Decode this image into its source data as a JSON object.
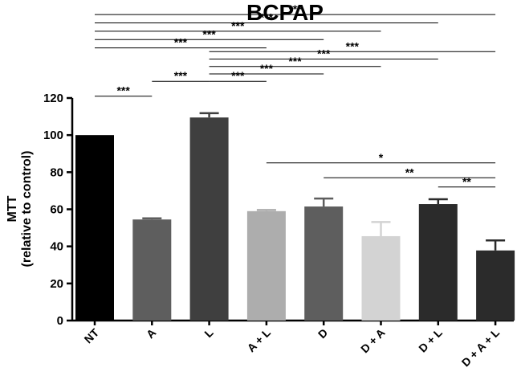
{
  "chart_data": {
    "type": "bar",
    "title": "BCPAP",
    "ylabel_line1": "MTT",
    "ylabel_line2": "(relative to control)",
    "xlabel": "",
    "ylim": [
      0,
      120
    ],
    "yticks": [
      0,
      20,
      40,
      60,
      80,
      100,
      120
    ],
    "grid": false,
    "categories": [
      "NT",
      "A",
      "L",
      "A + L",
      "D",
      "D + A",
      "D + L",
      "D + A + L"
    ],
    "values": [
      100,
      54.5,
      109.5,
      59,
      61.5,
      45.5,
      62.8,
      37.8
    ],
    "errors": [
      0,
      0.6,
      2.3,
      0.6,
      4.3,
      7.6,
      2.6,
      5.4
    ],
    "colors": [
      "#000000",
      "#5e5e5e",
      "#3f3f3f",
      "#adadad",
      "#5e5e5e",
      "#d3d3d3",
      "#2b2b2b",
      "#2b2b2b"
    ],
    "significance": [
      {
        "from": 0,
        "to": 1,
        "label": "***",
        "y": 121
      },
      {
        "from": 1,
        "to": 2,
        "label": "***",
        "y": 129
      },
      {
        "from": 2,
        "to": 3,
        "label": "***",
        "y": 129
      },
      {
        "from": 2,
        "to": 4,
        "label": "***",
        "y": 133
      },
      {
        "from": 2,
        "to": 5,
        "label": "***",
        "y": 137
      },
      {
        "from": 2,
        "to": 6,
        "label": "***",
        "y": 141
      },
      {
        "from": 2,
        "to": 7,
        "label": "***",
        "y": 145
      },
      {
        "from": 0,
        "to": 3,
        "label": "***",
        "y": 147
      },
      {
        "from": 0,
        "to": 4,
        "label": "***",
        "y": 151.5
      },
      {
        "from": 0,
        "to": 5,
        "label": "***",
        "y": 156
      },
      {
        "from": 0,
        "to": 6,
        "label": "***",
        "y": 160.5
      },
      {
        "from": 0,
        "to": 7,
        "label": "***",
        "y": 165
      },
      {
        "from": 3,
        "to": 7,
        "label": "*",
        "y": 85
      },
      {
        "from": 4,
        "to": 7,
        "label": "**",
        "y": 77
      },
      {
        "from": 6,
        "to": 7,
        "label": "**",
        "y": 72
      }
    ]
  }
}
